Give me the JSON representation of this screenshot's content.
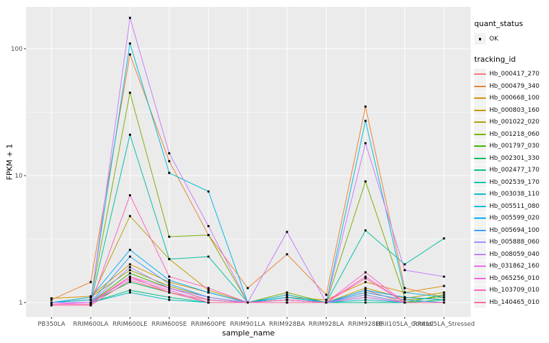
{
  "figure": {
    "background": "#FFFFFF",
    "panel_background": "#EBEBEB",
    "gridline_color": "#FFFFFF",
    "tick_color": "#333333",
    "tick_label_color": "#4D4D4D",
    "axis_title_color": "#000000",
    "x_axis_title": "sample_name",
    "y_axis_title": "FPKM + 1",
    "point_color": "#000000"
  },
  "legend": {
    "quant_status_title": "quant_status",
    "quant_status_items": [
      {
        "label": "OK",
        "symbol": "point",
        "color": "#000000"
      }
    ],
    "tracking_id_title": "tracking_id",
    "key_background": "#F2F2F2"
  },
  "chart_data": {
    "type": "line",
    "title": "",
    "xlabel": "sample_name",
    "ylabel": "FPKM + 1",
    "y_scale": "log10",
    "ylim": [
      0.8,
      220
    ],
    "y_ticks": [
      1,
      10,
      100
    ],
    "y_minor_ticks": [
      3.1623,
      31.623
    ],
    "grid": true,
    "legend_position": "right",
    "categories": [
      "PB350LA",
      "RRIM600LA",
      "RRIM600LE",
      "RRIM600SE",
      "RRIM600PE",
      "RRIM901LA",
      "RRIM928BA",
      "RRIM928LA",
      "RRIM928LE",
      "RRII105LA_Control",
      "RRII105LA_Stressed"
    ],
    "series": [
      {
        "name": "Hb_000417_270",
        "color": "#F8766D",
        "values": [
          1.0,
          1.0,
          1.6,
          1.2,
          1.05,
          1.0,
          1.05,
          1.0,
          1.25,
          1.0,
          1.0
        ]
      },
      {
        "name": "Hb_000479_340",
        "color": "#EA8331",
        "values": [
          1.05,
          1.45,
          90,
          13,
          3.4,
          1.3,
          2.4,
          1.15,
          35,
          1.3,
          1.1
        ]
      },
      {
        "name": "Hb_000668_100",
        "color": "#D89000",
        "values": [
          1.08,
          1.12,
          2.0,
          1.45,
          1.2,
          1.0,
          1.1,
          1.05,
          1.45,
          1.2,
          1.35
        ]
      },
      {
        "name": "Hb_000803_160",
        "color": "#C09B00",
        "values": [
          1.0,
          1.05,
          4.8,
          2.2,
          1.25,
          1.0,
          1.15,
          1.0,
          1.3,
          1.08,
          1.2
        ]
      },
      {
        "name": "Hb_001022_020",
        "color": "#A3A500",
        "values": [
          1.0,
          1.1,
          1.8,
          1.35,
          1.1,
          1.0,
          1.1,
          1.0,
          1.2,
          1.05,
          1.1
        ]
      },
      {
        "name": "Hb_001218_060",
        "color": "#7CAE00",
        "values": [
          1.0,
          1.05,
          45,
          3.3,
          3.4,
          1.0,
          1.2,
          1.0,
          9,
          1.1,
          1.05
        ]
      },
      {
        "name": "Hb_001797_030",
        "color": "#39B600",
        "values": [
          1.0,
          1.0,
          1.7,
          1.3,
          1.05,
          1.0,
          1.05,
          1.0,
          1.15,
          1.0,
          1.15
        ]
      },
      {
        "name": "Hb_002301_330",
        "color": "#00BB4E",
        "values": [
          1.0,
          1.0,
          1.45,
          1.2,
          1.0,
          1.0,
          1.0,
          1.0,
          1.1,
          1.0,
          1.05
        ]
      },
      {
        "name": "Hb_002477_170",
        "color": "#00C087",
        "values": [
          1.0,
          1.0,
          1.25,
          1.1,
          1.0,
          1.0,
          1.0,
          1.0,
          1.0,
          1.0,
          1.0
        ]
      },
      {
        "name": "Hb_002539_170",
        "color": "#00C1A3",
        "values": [
          1.0,
          1.0,
          21,
          2.2,
          2.3,
          1.0,
          1.1,
          1.0,
          3.7,
          2.0,
          3.2
        ]
      },
      {
        "name": "Hb_003038_110",
        "color": "#00BFC4",
        "values": [
          1.0,
          1.0,
          1.2,
          1.05,
          1.0,
          1.0,
          1.0,
          1.0,
          1.05,
          1.0,
          1.0
        ]
      },
      {
        "name": "Hb_005511_080",
        "color": "#00BAE0",
        "values": [
          1.0,
          1.05,
          110,
          10.5,
          7.5,
          1.0,
          1.15,
          1.0,
          27,
          1.2,
          1.1
        ]
      },
      {
        "name": "Hb_005599_020",
        "color": "#00B0F6",
        "values": [
          1.0,
          1.1,
          2.6,
          1.5,
          1.2,
          1.0,
          1.1,
          1.0,
          1.25,
          1.1,
          1.05
        ]
      },
      {
        "name": "Hb_005694_100",
        "color": "#35A2FF",
        "values": [
          1.0,
          1.0,
          2.3,
          1.4,
          1.1,
          1.0,
          1.05,
          1.0,
          1.2,
          1.05,
          1.0
        ]
      },
      {
        "name": "Hb_005888_060",
        "color": "#9590FF",
        "values": [
          1.0,
          1.0,
          1.9,
          1.3,
          1.1,
          1.0,
          1.0,
          1.0,
          1.15,
          1.0,
          1.0
        ]
      },
      {
        "name": "Hb_008059_040",
        "color": "#C77CFF",
        "values": [
          1.0,
          1.0,
          175,
          15,
          4.0,
          1.0,
          3.6,
          1.0,
          18,
          1.8,
          1.6
        ]
      },
      {
        "name": "Hb_031862_160",
        "color": "#E76BF3",
        "values": [
          0.97,
          1.0,
          1.55,
          1.25,
          1.0,
          1.0,
          1.0,
          1.0,
          1.1,
          1.0,
          1.0
        ]
      },
      {
        "name": "Hb_065256_010",
        "color": "#FA62DB",
        "values": [
          0.97,
          0.97,
          1.6,
          1.3,
          1.05,
          1.0,
          1.0,
          1.0,
          1.6,
          1.0,
          1.0
        ]
      },
      {
        "name": "Hb_103709_010",
        "color": "#FF62BC",
        "values": [
          0.97,
          0.97,
          7.0,
          1.6,
          1.3,
          1.0,
          1.05,
          1.0,
          1.73,
          1.0,
          1.0
        ]
      },
      {
        "name": "Hb_140465_010",
        "color": "#FF6A98",
        "values": [
          0.95,
          0.95,
          1.5,
          1.2,
          1.0,
          1.0,
          1.0,
          1.0,
          1.55,
          1.0,
          1.0
        ]
      }
    ]
  }
}
